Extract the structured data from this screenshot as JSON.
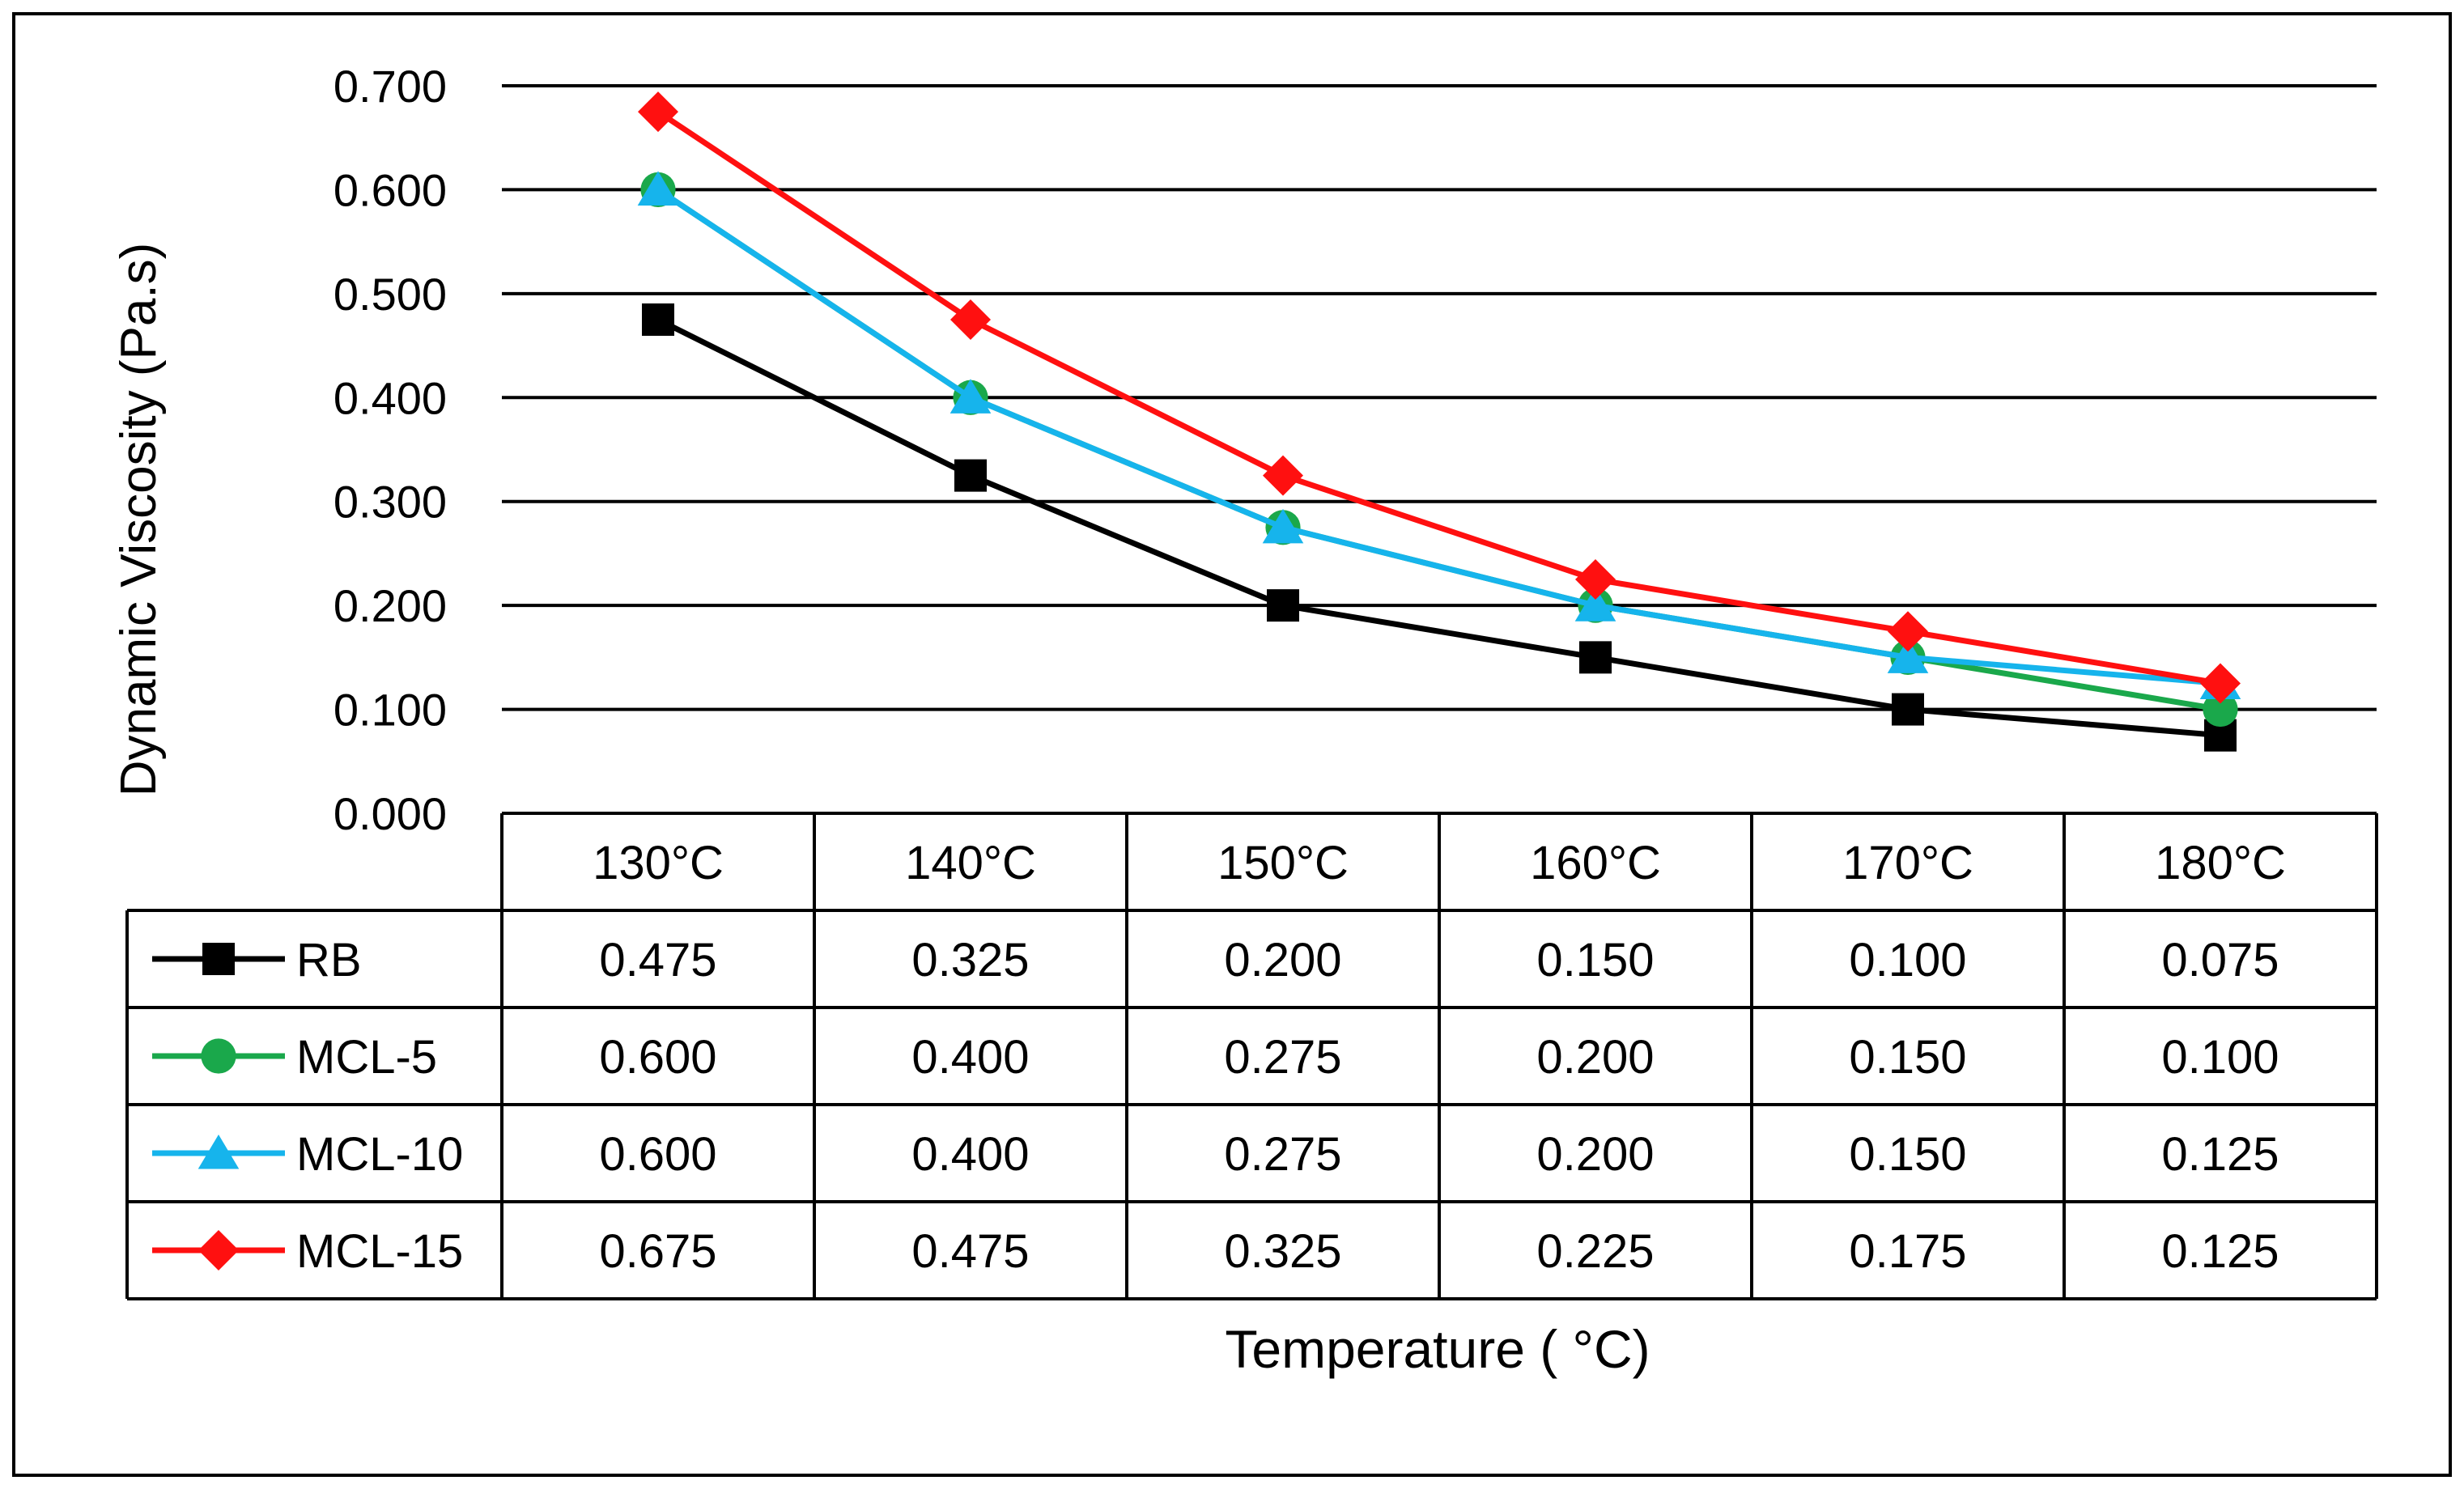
{
  "chart_data": {
    "type": "line",
    "title": "",
    "xlabel": "Temperature ( °C)",
    "ylabel": "Dynamic Viscosity (Pa.s)",
    "ylim": [
      0,
      0.7
    ],
    "yticks": [
      "0.000",
      "0.100",
      "0.200",
      "0.300",
      "0.400",
      "0.500",
      "0.600",
      "0.700"
    ],
    "categories": [
      "130°C",
      "140°C",
      "150°C",
      "160°C",
      "170°C",
      "180°C"
    ],
    "grid": true,
    "legend": "data-table",
    "series": [
      {
        "name": "RB",
        "color": "#000000",
        "marker": "square",
        "values": [
          0.475,
          0.325,
          0.2,
          0.15,
          0.1,
          0.075
        ],
        "labels": [
          "0.475",
          "0.325",
          "0.200",
          "0.150",
          "0.100",
          "0.075"
        ]
      },
      {
        "name": "MCL-5",
        "color": "#1aa84b",
        "marker": "circle",
        "values": [
          0.6,
          0.4,
          0.275,
          0.2,
          0.15,
          0.1
        ],
        "labels": [
          "0.600",
          "0.400",
          "0.275",
          "0.200",
          "0.150",
          "0.100"
        ]
      },
      {
        "name": "MCL-10",
        "color": "#16b4ec",
        "marker": "triangle",
        "values": [
          0.6,
          0.4,
          0.275,
          0.2,
          0.15,
          0.125
        ],
        "labels": [
          "0.600",
          "0.400",
          "0.275",
          "0.200",
          "0.150",
          "0.125"
        ]
      },
      {
        "name": "MCL-15",
        "color": "#ff1010",
        "marker": "diamond",
        "values": [
          0.675,
          0.475,
          0.325,
          0.225,
          0.175,
          0.125
        ],
        "labels": [
          "0.675",
          "0.475",
          "0.325",
          "0.225",
          "0.175",
          "0.125"
        ]
      }
    ]
  }
}
